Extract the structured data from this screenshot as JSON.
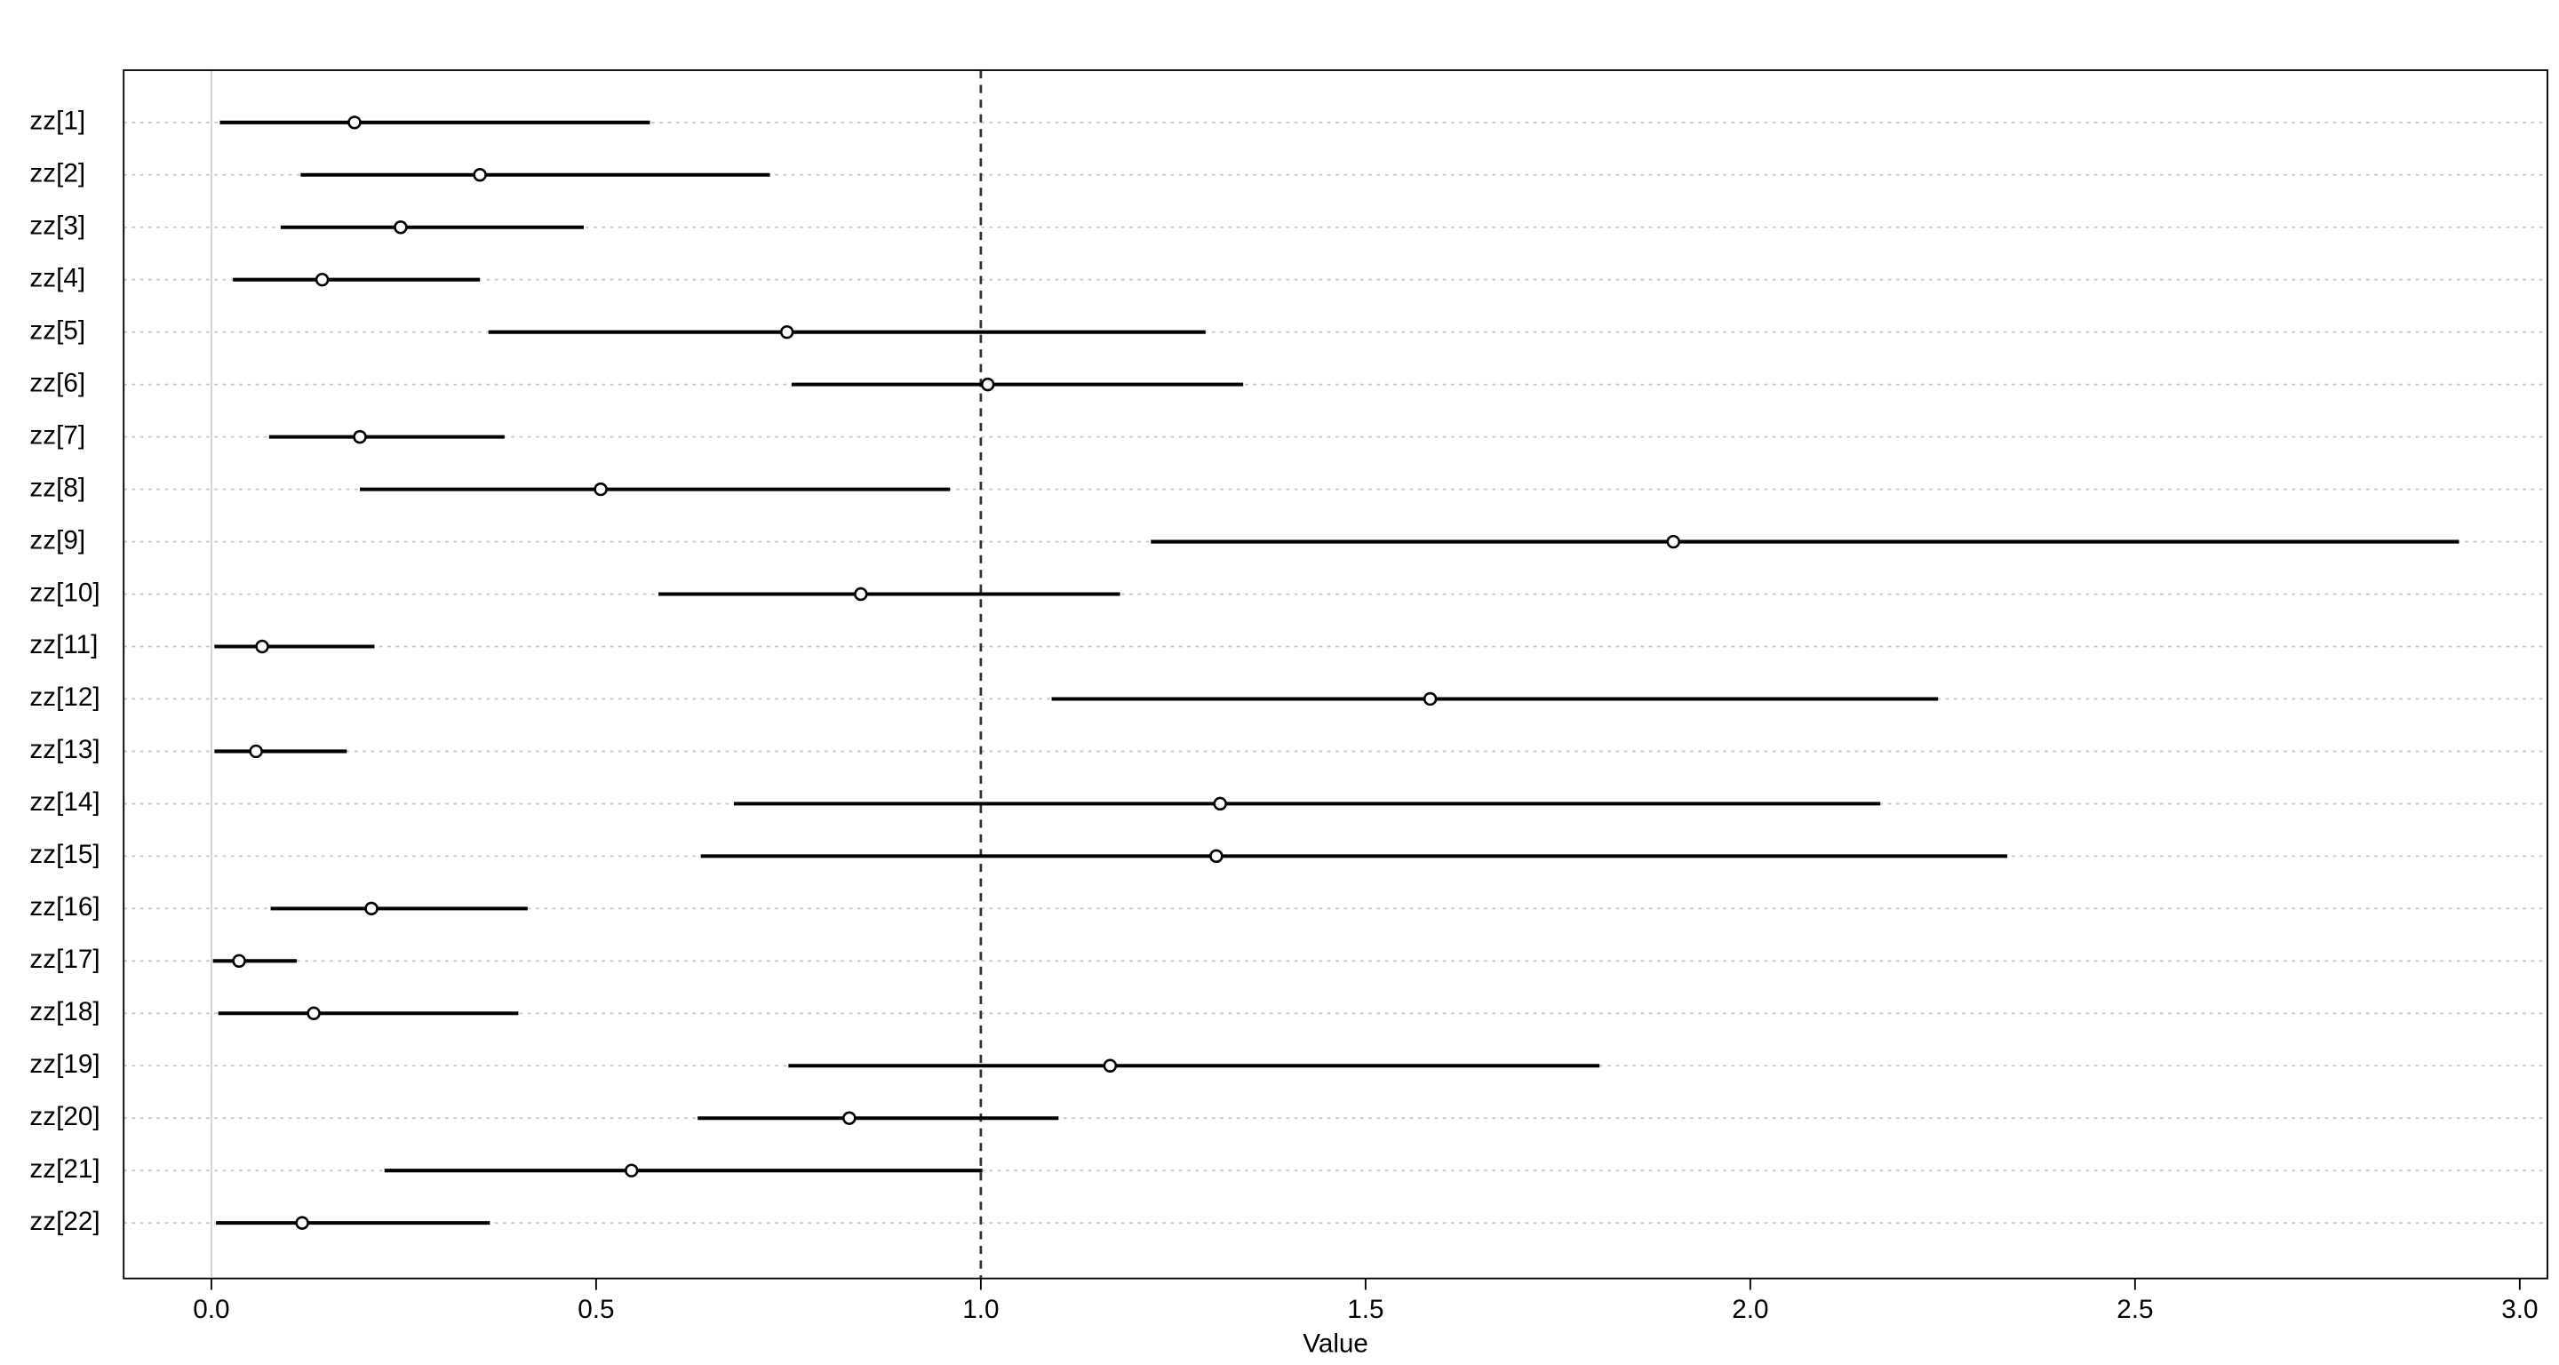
{
  "chart_data": {
    "type": "interval",
    "xlabel": "Value",
    "categories": [
      "zz[1]",
      "zz[2]",
      "zz[3]",
      "zz[4]",
      "zz[5]",
      "zz[6]",
      "zz[7]",
      "zz[8]",
      "zz[9]",
      "zz[10]",
      "zz[11]",
      "zz[12]",
      "zz[13]",
      "zz[14]",
      "zz[15]",
      "zz[16]",
      "zz[17]",
      "zz[18]",
      "zz[19]",
      "zz[20]",
      "zz[21]",
      "zz[22]"
    ],
    "values": [
      0.186,
      0.349,
      0.246,
      0.144,
      0.748,
      1.009,
      0.193,
      0.506,
      1.9,
      0.844,
      0.066,
      1.584,
      0.058,
      1.311,
      1.306,
      0.208,
      0.036,
      0.133,
      1.168,
      0.829,
      0.546,
      0.118
    ],
    "lower": [
      0.011,
      0.116,
      0.09,
      0.028,
      0.36,
      0.754,
      0.075,
      0.193,
      1.221,
      0.581,
      0.004,
      1.092,
      0.004,
      0.679,
      0.636,
      0.077,
      0.002,
      0.009,
      0.75,
      0.632,
      0.225,
      0.006
    ],
    "upper": [
      0.57,
      0.726,
      0.484,
      0.349,
      1.292,
      1.341,
      0.381,
      0.96,
      2.921,
      1.181,
      0.212,
      2.244,
      0.176,
      2.169,
      2.334,
      0.411,
      0.111,
      0.399,
      1.804,
      1.101,
      1.002,
      0.362
    ],
    "color": "#000000",
    "xlim": [
      -0.114,
      3.036
    ],
    "xticks": [
      {
        "value": 0,
        "label": "0.0"
      },
      0.5,
      {
        "value": 1,
        "label": "1.0"
      },
      1.5,
      {
        "value": 2,
        "label": "2.0"
      },
      2.5,
      {
        "value": 3,
        "label": "3.0"
      }
    ],
    "reference_line": 1,
    "zero_line": true,
    "grid": true
  }
}
